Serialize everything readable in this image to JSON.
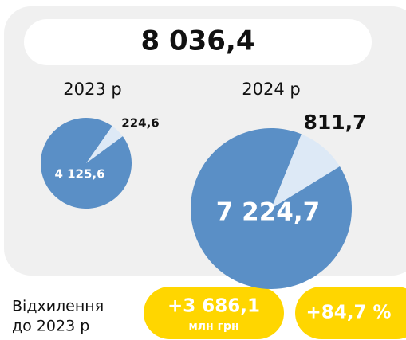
{
  "total": "8 036,4",
  "chart_data": [
    {
      "type": "pie",
      "title": "2023 р",
      "values": [
        224.6,
        4125.6
      ],
      "value_labels": [
        "224,6",
        "4 125,6"
      ],
      "colors": [
        "#dde9f6",
        "#5a8fc6"
      ],
      "startangle": 35
    },
    {
      "type": "pie",
      "title": "2024 р",
      "values": [
        811.7,
        7224.7
      ],
      "value_labels": [
        "811,7",
        "7 224,7"
      ],
      "colors": [
        "#dde9f6",
        "#5a8fc6"
      ],
      "startangle": 22
    }
  ],
  "deviation": {
    "label": [
      "Відхилення",
      "до 2023 р"
    ],
    "absolute": "+3 686,1",
    "unit": "млн грн",
    "percent": "+84,7 %"
  }
}
